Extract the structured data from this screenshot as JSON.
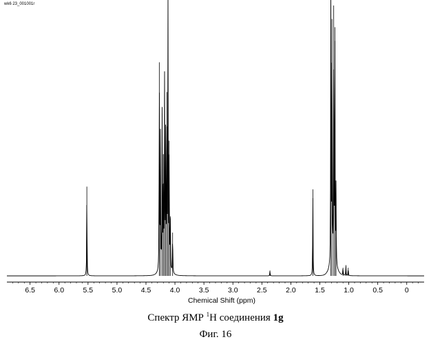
{
  "file_label": "wk6 23_001001r",
  "caption": {
    "prefix": "Спектр ЯМР ",
    "superscript": "1",
    "middle": "H соединения ",
    "bold": "1g",
    "figure": "Фиг. 16"
  },
  "chart_data": {
    "type": "line",
    "title": "",
    "xlabel": "Chemical Shift (ppm)",
    "ylabel": "",
    "x_reversed": true,
    "xlim": [
      6.9,
      -0.3
    ],
    "ylim": [
      0,
      100
    ],
    "ticks": [
      6.5,
      6.0,
      5.5,
      5.0,
      4.5,
      4.0,
      3.5,
      3.0,
      2.5,
      2.0,
      1.5,
      1.0,
      0.5,
      0
    ],
    "tick_labels": [
      "6.5",
      "6.0",
      "5.5",
      "5.0",
      "4.5",
      "4.0",
      "3.5",
      "3.0",
      "2.5",
      "2.0",
      "1.5",
      "1.0",
      "0.5",
      "0"
    ],
    "grid": false,
    "series": [
      {
        "peaks": [
          {
            "x": 5.52,
            "h": 33
          },
          {
            "x": 4.27,
            "h": 79
          },
          {
            "x": 4.25,
            "h": 50
          },
          {
            "x": 4.22,
            "h": 60
          },
          {
            "x": 4.2,
            "h": 45
          },
          {
            "x": 4.18,
            "h": 72
          },
          {
            "x": 4.16,
            "h": 55
          },
          {
            "x": 4.14,
            "h": 68
          },
          {
            "x": 4.12,
            "h": 100
          },
          {
            "x": 4.1,
            "h": 50
          },
          {
            "x": 4.08,
            "h": 22
          },
          {
            "x": 4.04,
            "h": 16
          },
          {
            "x": 2.36,
            "h": 2
          },
          {
            "x": 1.62,
            "h": 32
          },
          {
            "x": 1.31,
            "h": 100
          },
          {
            "x": 1.29,
            "h": 95
          },
          {
            "x": 1.26,
            "h": 100
          },
          {
            "x": 1.24,
            "h": 92
          },
          {
            "x": 1.22,
            "h": 30
          },
          {
            "x": 1.1,
            "h": 3
          },
          {
            "x": 1.05,
            "h": 4
          },
          {
            "x": 1.01,
            "h": 3
          }
        ]
      }
    ]
  }
}
